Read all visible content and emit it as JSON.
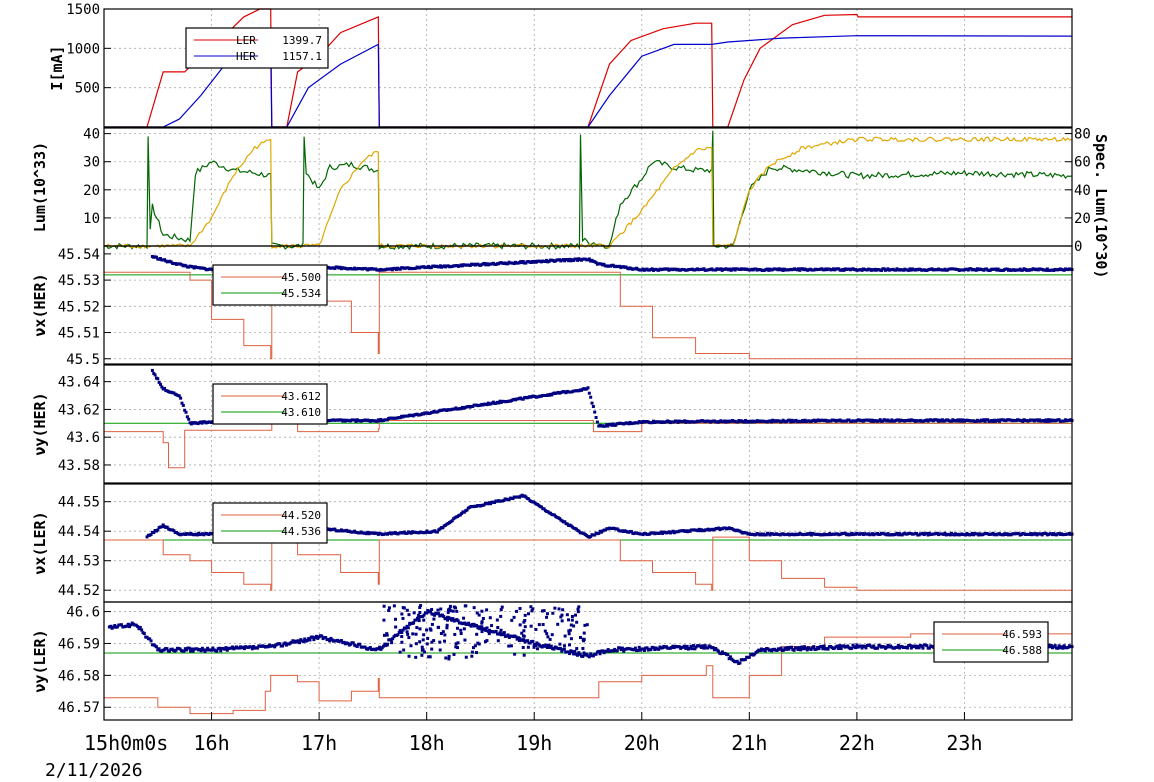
{
  "colors": {
    "ler": "#dd0000",
    "her": "#0000cc",
    "lum_total": "#006600",
    "lum_spec": "#e0a800",
    "nominal": "#009900",
    "tune_set": "#e06040",
    "tune_meas": "#000080",
    "grid": "#aaaaaa"
  },
  "x_axis": {
    "tick_labels": [
      "15h0m0s",
      "16h",
      "17h",
      "18h",
      "19h",
      "20h",
      "21h",
      "22h",
      "23h"
    ],
    "date_label": "2/11/2026",
    "xlim": [
      15.0,
      24.0
    ]
  },
  "chart_data": [
    {
      "type": "line",
      "ylabel": "I[mA]",
      "ylim": [
        0,
        1500
      ],
      "yticks": [
        "500",
        "1000",
        "1500"
      ],
      "legend": [
        {
          "label": "LER",
          "value": "1399.7"
        },
        {
          "label": "HER",
          "value": "1157.1"
        }
      ],
      "series": [
        {
          "name": "LER",
          "points": [
            [
              15.0,
              0
            ],
            [
              15.4,
              0
            ],
            [
              15.55,
              700
            ],
            [
              15.75,
              700
            ],
            [
              15.9,
              900
            ],
            [
              16.15,
              1200
            ],
            [
              16.3,
              1400
            ],
            [
              16.45,
              1500
            ],
            [
              16.55,
              1500
            ],
            [
              16.56,
              0
            ],
            [
              16.7,
              0
            ],
            [
              16.8,
              700
            ],
            [
              17.0,
              900
            ],
            [
              17.2,
              1200
            ],
            [
              17.55,
              1400
            ],
            [
              17.56,
              0
            ],
            [
              19.4,
              0
            ],
            [
              19.5,
              0
            ],
            [
              19.7,
              800
            ],
            [
              19.9,
              1100
            ],
            [
              20.2,
              1250
            ],
            [
              20.5,
              1320
            ],
            [
              20.65,
              1320
            ],
            [
              20.66,
              0
            ],
            [
              20.8,
              0
            ],
            [
              20.95,
              600
            ],
            [
              21.1,
              1000
            ],
            [
              21.4,
              1300
            ],
            [
              21.7,
              1420
            ],
            [
              22.0,
              1430
            ],
            [
              22.01,
              1400
            ],
            [
              24.0,
              1400
            ]
          ]
        },
        {
          "name": "HER",
          "points": [
            [
              15.0,
              0
            ],
            [
              15.55,
              0
            ],
            [
              15.7,
              100
            ],
            [
              15.9,
              400
            ],
            [
              16.1,
              750
            ],
            [
              16.4,
              950
            ],
            [
              16.55,
              950
            ],
            [
              16.56,
              0
            ],
            [
              16.7,
              0
            ],
            [
              16.9,
              500
            ],
            [
              17.2,
              800
            ],
            [
              17.55,
              1050
            ],
            [
              17.56,
              0
            ],
            [
              19.5,
              0
            ],
            [
              19.7,
              400
            ],
            [
              20.0,
              900
            ],
            [
              20.3,
              1050
            ],
            [
              20.65,
              1050
            ],
            [
              20.8,
              1080
            ],
            [
              21.0,
              1100
            ],
            [
              21.3,
              1130
            ],
            [
              22.0,
              1160
            ],
            [
              24.0,
              1155
            ]
          ]
        }
      ]
    },
    {
      "type": "line",
      "ylabel": "Lum(10^33)",
      "ylim": [
        0,
        42
      ],
      "yticks": [
        "10",
        "20",
        "30",
        "40"
      ],
      "y2label": "Spec. Lum(10^30)",
      "y2lim": [
        0,
        84
      ],
      "y2ticks": [
        "0",
        "20",
        "40",
        "60",
        "80"
      ],
      "series": [
        {
          "name": "Lum",
          "points": [
            [
              15.0,
              0
            ],
            [
              15.4,
              0
            ],
            [
              15.41,
              40
            ],
            [
              15.43,
              5
            ],
            [
              15.45,
              14
            ],
            [
              15.55,
              4
            ],
            [
              15.8,
              2
            ],
            [
              15.85,
              26
            ],
            [
              16.0,
              30
            ],
            [
              16.2,
              27
            ],
            [
              16.4,
              26
            ],
            [
              16.55,
              25
            ],
            [
              16.56,
              0
            ],
            [
              16.85,
              0
            ],
            [
              16.86,
              40
            ],
            [
              16.88,
              26
            ],
            [
              17.0,
              20
            ],
            [
              17.1,
              28
            ],
            [
              17.3,
              29
            ],
            [
              17.55,
              27
            ],
            [
              17.56,
              0
            ],
            [
              19.42,
              0
            ],
            [
              19.43,
              40
            ],
            [
              19.45,
              2
            ],
            [
              19.7,
              0
            ],
            [
              19.8,
              15
            ],
            [
              20.0,
              24
            ],
            [
              20.1,
              30
            ],
            [
              20.3,
              28
            ],
            [
              20.5,
              27
            ],
            [
              20.65,
              27
            ],
            [
              20.66,
              40
            ],
            [
              20.67,
              0
            ],
            [
              20.85,
              0
            ],
            [
              21.0,
              20
            ],
            [
              21.2,
              28
            ],
            [
              21.5,
              27
            ],
            [
              22.0,
              25
            ],
            [
              23.0,
              26
            ],
            [
              24.0,
              25
            ]
          ]
        },
        {
          "name": "Spec. Lum",
          "points": [
            [
              15.0,
              0
            ],
            [
              15.8,
              0
            ],
            [
              16.0,
              20
            ],
            [
              16.2,
              50
            ],
            [
              16.4,
              70
            ],
            [
              16.55,
              76
            ],
            [
              16.56,
              0
            ],
            [
              17.0,
              0
            ],
            [
              17.2,
              40
            ],
            [
              17.4,
              60
            ],
            [
              17.55,
              68
            ],
            [
              17.56,
              0
            ],
            [
              19.7,
              0
            ],
            [
              20.0,
              25
            ],
            [
              20.3,
              55
            ],
            [
              20.5,
              68
            ],
            [
              20.65,
              70
            ],
            [
              20.66,
              0
            ],
            [
              20.85,
              0
            ],
            [
              21.0,
              40
            ],
            [
              21.2,
              58
            ],
            [
              21.5,
              70
            ],
            [
              22.0,
              76
            ],
            [
              23.0,
              76
            ],
            [
              24.0,
              76
            ]
          ]
        }
      ]
    },
    {
      "type": "scatter",
      "ylabel": "νx(HER)",
      "ylim": [
        45.498,
        45.543
      ],
      "yticks": [
        "45.5",
        "45.51",
        "45.52",
        "45.53",
        "45.54"
      ],
      "legend": [
        {
          "label": "",
          "value": "45.500"
        },
        {
          "label": "",
          "value": "45.534"
        }
      ],
      "nominal": 45.532,
      "setpoint": [
        [
          15.0,
          45.533
        ],
        [
          15.55,
          45.533
        ],
        [
          15.8,
          45.53
        ],
        [
          16.0,
          45.515
        ],
        [
          16.3,
          45.505
        ],
        [
          16.55,
          45.5
        ],
        [
          16.56,
          45.533
        ],
        [
          17.0,
          45.522
        ],
        [
          17.3,
          45.51
        ],
        [
          17.55,
          45.502
        ],
        [
          17.56,
          45.533
        ],
        [
          19.6,
          45.533
        ],
        [
          19.8,
          45.52
        ],
        [
          20.1,
          45.508
        ],
        [
          20.5,
          45.502
        ],
        [
          21.0,
          45.5
        ],
        [
          24.0,
          45.5
        ]
      ],
      "measured": [
        [
          15.45,
          45.539
        ],
        [
          15.6,
          45.537
        ],
        [
          15.8,
          45.535
        ],
        [
          16.0,
          45.534
        ],
        [
          16.5,
          45.534
        ],
        [
          17.0,
          45.535
        ],
        [
          17.55,
          45.534
        ],
        [
          19.5,
          45.538
        ],
        [
          19.6,
          45.536
        ],
        [
          20.0,
          45.534
        ],
        [
          21.0,
          45.534
        ],
        [
          22.0,
          45.534
        ],
        [
          23.0,
          45.534
        ],
        [
          24.0,
          45.534
        ]
      ]
    },
    {
      "type": "scatter",
      "ylabel": "νy(HER)",
      "ylim": [
        43.567,
        43.652
      ],
      "yticks": [
        "43.58",
        "43.6",
        "43.62",
        "43.64"
      ],
      "legend": [
        {
          "label": "",
          "value": "43.612"
        },
        {
          "label": "",
          "value": "43.610"
        }
      ],
      "nominal": 43.61,
      "setpoint": [
        [
          15.0,
          43.604
        ],
        [
          15.45,
          43.604
        ],
        [
          15.55,
          43.596
        ],
        [
          15.6,
          43.578
        ],
        [
          15.7,
          43.578
        ],
        [
          15.75,
          43.605
        ],
        [
          16.55,
          43.605
        ],
        [
          16.56,
          43.612
        ],
        [
          16.8,
          43.604
        ],
        [
          17.55,
          43.606
        ],
        [
          17.56,
          43.612
        ],
        [
          19.5,
          43.612
        ],
        [
          19.55,
          43.604
        ],
        [
          20.0,
          43.61
        ],
        [
          24.0,
          43.612
        ]
      ],
      "measured": [
        [
          15.45,
          43.648
        ],
        [
          15.55,
          43.635
        ],
        [
          15.7,
          43.63
        ],
        [
          15.8,
          43.61
        ],
        [
          16.0,
          43.611
        ],
        [
          17.0,
          43.612
        ],
        [
          17.55,
          43.612
        ],
        [
          19.5,
          43.635
        ],
        [
          19.6,
          43.608
        ],
        [
          20.0,
          43.611
        ],
        [
          22.0,
          43.612
        ],
        [
          24.0,
          43.612
        ]
      ]
    },
    {
      "type": "scatter",
      "ylabel": "νx(LER)",
      "ylim": [
        44.516,
        44.556
      ],
      "yticks": [
        "44.52",
        "44.53",
        "44.54",
        "44.55"
      ],
      "legend": [
        {
          "label": "",
          "value": "44.520"
        },
        {
          "label": "",
          "value": "44.536"
        }
      ],
      "nominal": 44.537,
      "setpoint": [
        [
          15.0,
          44.537
        ],
        [
          15.5,
          44.537
        ],
        [
          15.55,
          44.532
        ],
        [
          15.8,
          44.53
        ],
        [
          16.0,
          44.526
        ],
        [
          16.3,
          44.522
        ],
        [
          16.55,
          44.52
        ],
        [
          16.56,
          44.538
        ],
        [
          16.8,
          44.532
        ],
        [
          17.2,
          44.526
        ],
        [
          17.55,
          44.522
        ],
        [
          17.56,
          44.537
        ],
        [
          19.6,
          44.537
        ],
        [
          19.8,
          44.53
        ],
        [
          20.1,
          44.526
        ],
        [
          20.5,
          44.522
        ],
        [
          20.65,
          44.52
        ],
        [
          20.66,
          44.538
        ],
        [
          21.0,
          44.53
        ],
        [
          21.3,
          44.524
        ],
        [
          21.7,
          44.521
        ],
        [
          22.0,
          44.52
        ],
        [
          24.0,
          44.52
        ]
      ],
      "measured": [
        [
          15.4,
          44.538
        ],
        [
          15.55,
          44.542
        ],
        [
          15.7,
          44.539
        ],
        [
          16.0,
          44.539
        ],
        [
          17.0,
          44.541
        ],
        [
          17.55,
          44.539
        ],
        [
          18.1,
          44.54
        ],
        [
          18.4,
          44.548
        ],
        [
          18.9,
          44.552
        ],
        [
          19.5,
          44.538
        ],
        [
          19.7,
          44.541
        ],
        [
          20.0,
          44.539
        ],
        [
          20.8,
          44.541
        ],
        [
          21.0,
          44.539
        ],
        [
          22.0,
          44.539
        ],
        [
          24.0,
          44.539
        ]
      ]
    },
    {
      "type": "scatter",
      "ylabel": "νy(LER)",
      "ylim": [
        46.566,
        46.603
      ],
      "yticks": [
        "46.57",
        "46.58",
        "46.59",
        "46.6"
      ],
      "legend": [
        {
          "label": "",
          "value": "46.593"
        },
        {
          "label": "",
          "value": "46.588"
        }
      ],
      "nominal": 46.587,
      "setpoint": [
        [
          15.0,
          46.573
        ],
        [
          15.3,
          46.573
        ],
        [
          15.5,
          46.57
        ],
        [
          15.8,
          46.568
        ],
        [
          16.2,
          46.569
        ],
        [
          16.5,
          46.575
        ],
        [
          16.55,
          46.58
        ],
        [
          16.8,
          46.578
        ],
        [
          17.0,
          46.572
        ],
        [
          17.3,
          46.575
        ],
        [
          17.55,
          46.579
        ],
        [
          17.56,
          46.573
        ],
        [
          19.5,
          46.573
        ],
        [
          19.6,
          46.578
        ],
        [
          20.0,
          46.58
        ],
        [
          20.6,
          46.583
        ],
        [
          20.65,
          46.583
        ],
        [
          20.66,
          46.573
        ],
        [
          20.9,
          46.573
        ],
        [
          21.0,
          46.58
        ],
        [
          21.3,
          46.589
        ],
        [
          21.7,
          46.592
        ],
        [
          22.5,
          46.593
        ],
        [
          24.0,
          46.592
        ]
      ],
      "measured": [
        [
          15.05,
          46.595
        ],
        [
          15.3,
          46.596
        ],
        [
          15.5,
          46.588
        ],
        [
          16.0,
          46.588
        ],
        [
          16.55,
          46.589
        ],
        [
          17.0,
          46.592
        ],
        [
          17.55,
          46.588
        ],
        [
          18.0,
          46.6
        ],
        [
          18.5,
          46.595
        ],
        [
          19.0,
          46.59
        ],
        [
          19.5,
          46.586
        ],
        [
          19.7,
          46.588
        ],
        [
          20.65,
          46.589
        ],
        [
          20.9,
          46.584
        ],
        [
          21.1,
          46.588
        ],
        [
          22.0,
          46.589
        ],
        [
          24.0,
          46.589
        ]
      ]
    }
  ]
}
